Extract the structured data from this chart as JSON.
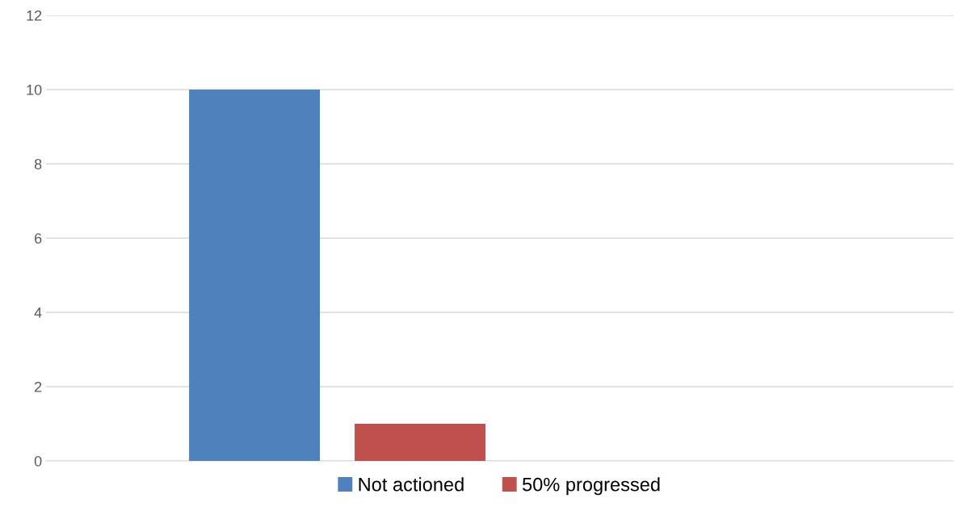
{
  "chart_data": {
    "type": "bar",
    "categories": [
      null
    ],
    "series": [
      {
        "name": "Not actioned",
        "color": "#4f81bd",
        "values": [
          10
        ]
      },
      {
        "name": "50% progressed",
        "color": "#c0504d",
        "values": [
          1
        ]
      }
    ],
    "ylim": [
      0,
      12
    ],
    "yticks": [
      0,
      2,
      4,
      6,
      8,
      10,
      12
    ],
    "grid": "y",
    "legend": "bottom"
  }
}
